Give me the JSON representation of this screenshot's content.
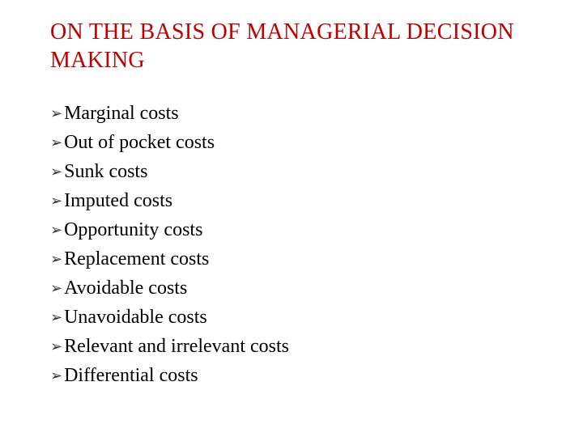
{
  "title": "ON THE BASIS OF MANAGERIAL DECISION MAKING",
  "title_color": "#c00000",
  "text_color": "#000000",
  "background_color": "#ffffff",
  "font_family": "Garamond, 'Times New Roman', Times, serif",
  "title_fontsize": 28,
  "item_fontsize": 24,
  "bullet_glyph": "➢",
  "items": [
    "Marginal costs",
    "Out of pocket costs",
    "Sunk costs",
    "Imputed costs",
    "Opportunity costs",
    "Replacement costs",
    "Avoidable costs",
    "Unavoidable costs",
    "Relevant and irrelevant costs",
    "Differential costs"
  ]
}
